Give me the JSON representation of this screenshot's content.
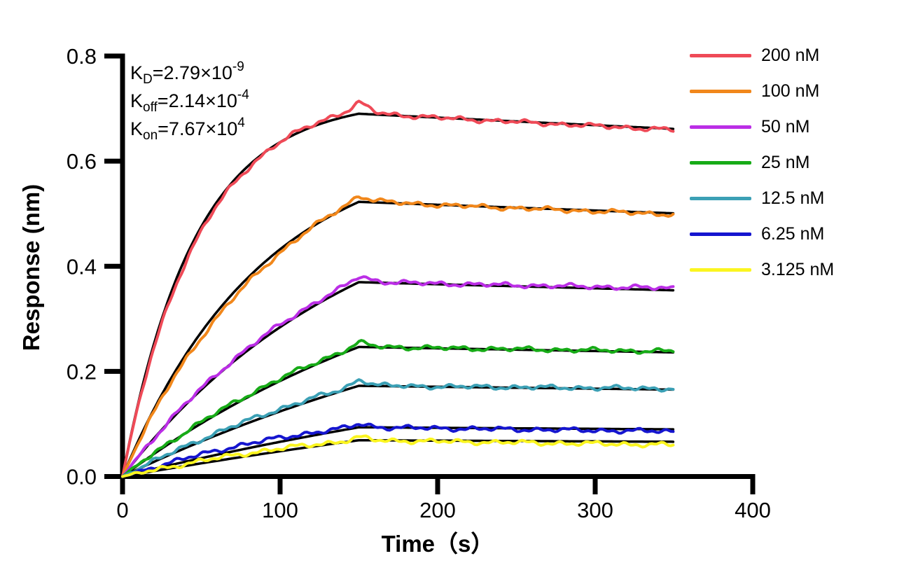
{
  "chart_data": {
    "type": "line",
    "title": "",
    "xlabel": "Time（s）",
    "ylabel": "Response (nm)",
    "xlim": [
      0,
      400
    ],
    "ylim": [
      0,
      0.8
    ],
    "x_ticks": [
      "0",
      "100",
      "200",
      "300",
      "400"
    ],
    "y_ticks": [
      "0.0",
      "0.2",
      "0.4",
      "0.6",
      "0.8"
    ],
    "grid": false,
    "legend_position": "right-outside",
    "association_end_s": 150,
    "trace_end_s": 350,
    "kinetics_annotation": {
      "lines": [
        {
          "base": "K",
          "sub": "D",
          "value": "=2.79×10",
          "exp": "-9"
        },
        {
          "base": "K",
          "sub": "off",
          "value": "=2.14×10",
          "exp": "-4"
        },
        {
          "base": "K",
          "sub": "on",
          "value": "=7.67×10",
          "exp": "4"
        }
      ]
    },
    "fit": {
      "color": "#000000",
      "k_off_per_s": 0.000214
    },
    "series": [
      {
        "label": "200 nM",
        "color": "#EF4A57",
        "peak_response_nm": 0.7,
        "end_response_nm": 0.663,
        "k_obs_per_s": 0.0205
      },
      {
        "label": "100 nM",
        "color": "#F1871B",
        "peak_response_nm": 0.53,
        "end_response_nm": 0.506,
        "k_obs_per_s": 0.0105
      },
      {
        "label": "50 nM",
        "color": "#BB2EE6",
        "peak_response_nm": 0.375,
        "end_response_nm": 0.36,
        "k_obs_per_s": 0.0062
      },
      {
        "label": "25 nM",
        "color": "#17AB17",
        "peak_response_nm": 0.25,
        "end_response_nm": 0.24,
        "k_obs_per_s": 0.0042
      },
      {
        "label": "12.5 nM",
        "color": "#3BA0B5",
        "peak_response_nm": 0.175,
        "end_response_nm": 0.166,
        "k_obs_per_s": 0.003
      },
      {
        "label": "6.25 nM",
        "color": "#1515CF",
        "peak_response_nm": 0.095,
        "end_response_nm": 0.085,
        "k_obs_per_s": 0.0022
      },
      {
        "label": "3.125 nM",
        "color": "#FBF520",
        "peak_response_nm": 0.07,
        "end_response_nm": 0.058,
        "k_obs_per_s": 0.0017
      }
    ]
  }
}
